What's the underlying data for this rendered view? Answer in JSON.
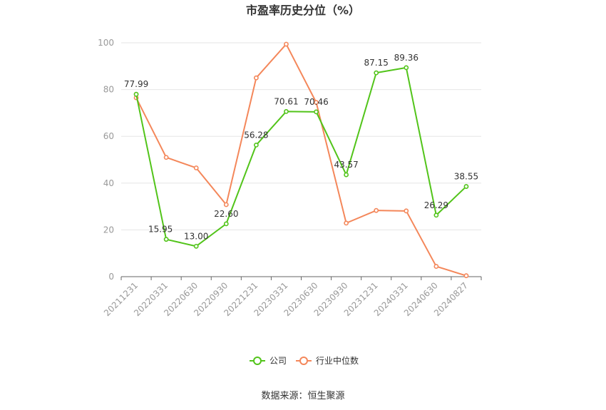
{
  "chart_data": {
    "type": "line",
    "title": "市盈率历史分位（%）",
    "categories": [
      "20211231",
      "20220331",
      "20220630",
      "20220930",
      "20221231",
      "20230331",
      "20230630",
      "20230930",
      "20231231",
      "20240331",
      "20240630",
      "20240827"
    ],
    "series": [
      {
        "name": "公司",
        "color": "#52c41a",
        "values": [
          77.99,
          15.95,
          13.0,
          22.6,
          56.28,
          70.61,
          70.46,
          43.57,
          87.15,
          89.36,
          26.29,
          38.55
        ],
        "labels": [
          "77.99",
          "15.95",
          "13.00",
          "22.60",
          "56.28",
          "70.61",
          "70.46",
          "43.57",
          "87.15",
          "89.36",
          "26.29",
          "38.55"
        ]
      },
      {
        "name": "行业中位数",
        "color": "#f4875a",
        "values": [
          76.5,
          51.0,
          46.5,
          30.8,
          85.0,
          99.4,
          74.5,
          22.9,
          28.3,
          28.1,
          4.4,
          0.4
        ]
      }
    ],
    "yticks": [
      "0",
      "20",
      "40",
      "60",
      "80",
      "100"
    ],
    "ylim": [
      0,
      100
    ],
    "grid": true,
    "legend": "bottom-center"
  },
  "source": "数据来源：恒生聚源"
}
